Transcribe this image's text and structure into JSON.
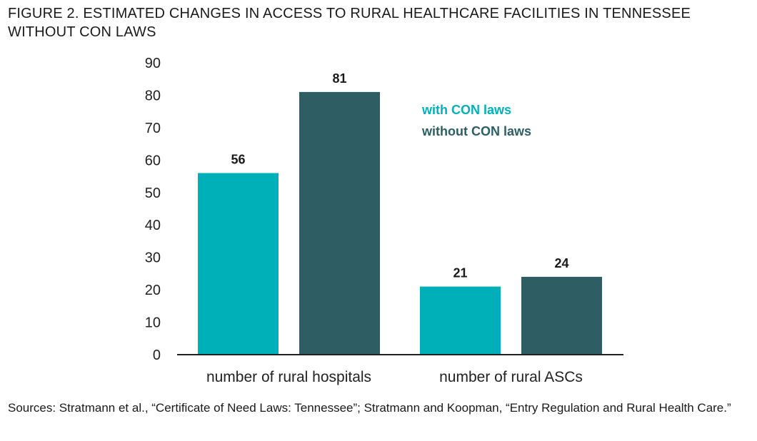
{
  "title": "FIGURE 2. ESTIMATED CHANGES IN ACCESS TO RURAL HEALTHCARE FACILITIES IN TENNESSEE WITHOUT CON LAWS",
  "source": "Sources: Stratmann et al., “Certificate of Need Laws: Tennessee”; Stratmann and Koopman, “Entry Regulation and Rural Health Care.”",
  "colors": {
    "with": "#00b0b9",
    "without": "#2e5e63",
    "axis": "#222222"
  },
  "chart_data": {
    "type": "bar",
    "categories": [
      "number of rural hospitals",
      "number of rural ASCs"
    ],
    "series": [
      {
        "name": "with CON laws",
        "values": [
          56,
          21
        ]
      },
      {
        "name": "without CON laws",
        "values": [
          81,
          24
        ]
      }
    ],
    "ylim": [
      0,
      90
    ],
    "yticks": [
      "0",
      "10",
      "20",
      "30",
      "40",
      "50",
      "60",
      "70",
      "80",
      "90"
    ],
    "grid": false,
    "legend": "top-right",
    "data_labels": true
  }
}
